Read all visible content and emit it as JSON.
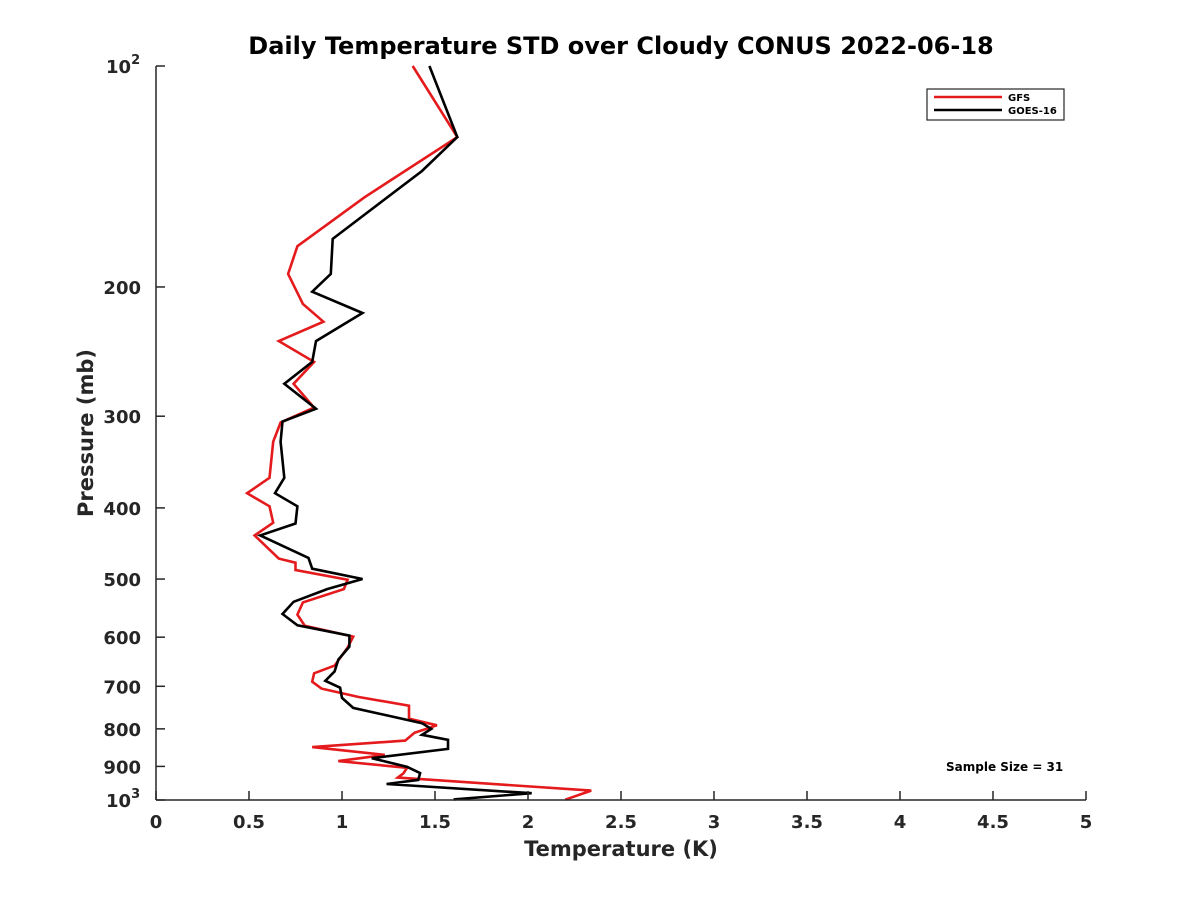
{
  "chart_data": {
    "type": "line",
    "title": "Daily Temperature STD over Cloudy CONUS 2022-06-18",
    "xlabel": "Temperature (K)",
    "ylabel": "Pressure (mb)",
    "xlim": [
      0,
      5
    ],
    "ylim": [
      1000,
      100
    ],
    "y_scale": "log",
    "y_reversed": true,
    "grid": false,
    "legend_position": "top-right",
    "x_ticks": [
      "0",
      "0.5",
      "1",
      "1.5",
      "2",
      "2.5",
      "3",
      "3.5",
      "4",
      "4.5",
      "5"
    ],
    "y_ticks": [
      {
        "value": 100,
        "label": "10",
        "sup": "2"
      },
      {
        "value": 200,
        "label": "200",
        "sup": ""
      },
      {
        "value": 300,
        "label": "300",
        "sup": ""
      },
      {
        "value": 400,
        "label": "400",
        "sup": ""
      },
      {
        "value": 500,
        "label": "500",
        "sup": ""
      },
      {
        "value": 600,
        "label": "600",
        "sup": ""
      },
      {
        "value": 700,
        "label": "700",
        "sup": ""
      },
      {
        "value": 800,
        "label": "800",
        "sup": ""
      },
      {
        "value": 900,
        "label": "900",
        "sup": ""
      },
      {
        "value": 1000,
        "label": "10",
        "sup": "3"
      }
    ],
    "series": [
      {
        "name": "GFS",
        "color": "#e41a1c",
        "points": [
          [
            1.38,
            100
          ],
          [
            1.62,
            125
          ],
          [
            1.12,
            151
          ],
          [
            0.76,
            176
          ],
          [
            0.71,
            192
          ],
          [
            0.79,
            211
          ],
          [
            0.9,
            223
          ],
          [
            0.66,
            237
          ],
          [
            0.85,
            253
          ],
          [
            0.74,
            271
          ],
          [
            0.85,
            292
          ],
          [
            0.67,
            306
          ],
          [
            0.63,
            325
          ],
          [
            0.61,
            364
          ],
          [
            0.49,
            382
          ],
          [
            0.61,
            398
          ],
          [
            0.63,
            419
          ],
          [
            0.53,
            436
          ],
          [
            0.66,
            469
          ],
          [
            0.75,
            475
          ],
          [
            0.75,
            486
          ],
          [
            1.03,
            501
          ],
          [
            1.01,
            516
          ],
          [
            0.79,
            538
          ],
          [
            0.76,
            559
          ],
          [
            0.8,
            579
          ],
          [
            1.06,
            599
          ],
          [
            1.03,
            620
          ],
          [
            0.96,
            656
          ],
          [
            0.85,
            672
          ],
          [
            0.84,
            690
          ],
          [
            0.89,
            705
          ],
          [
            1.09,
            724
          ],
          [
            1.36,
            744
          ],
          [
            1.36,
            775
          ],
          [
            1.51,
            791
          ],
          [
            1.39,
            810
          ],
          [
            1.34,
            830
          ],
          [
            0.84,
            847
          ],
          [
            1.23,
            868
          ],
          [
            0.98,
            885
          ],
          [
            1.35,
            904
          ],
          [
            1.33,
            920
          ],
          [
            1.3,
            932
          ],
          [
            2.34,
            971
          ],
          [
            2.2,
            999
          ]
        ]
      },
      {
        "name": "GOES-16",
        "color": "#000000",
        "points": [
          [
            1.47,
            100
          ],
          [
            1.62,
            125
          ],
          [
            1.43,
            139
          ],
          [
            0.95,
            172
          ],
          [
            0.94,
            192
          ],
          [
            0.84,
            203
          ],
          [
            1.11,
            217
          ],
          [
            0.86,
            237
          ],
          [
            0.84,
            253
          ],
          [
            0.69,
            271
          ],
          [
            0.86,
            293
          ],
          [
            0.68,
            305
          ],
          [
            0.67,
            325
          ],
          [
            0.69,
            364
          ],
          [
            0.64,
            382
          ],
          [
            0.76,
            398
          ],
          [
            0.75,
            420
          ],
          [
            0.56,
            436
          ],
          [
            0.82,
            468
          ],
          [
            0.84,
            484
          ],
          [
            1.11,
            500
          ],
          [
            0.92,
            516
          ],
          [
            0.74,
            537
          ],
          [
            0.68,
            558
          ],
          [
            0.76,
            578
          ],
          [
            1.04,
            597
          ],
          [
            1.04,
            618
          ],
          [
            0.98,
            644
          ],
          [
            0.96,
            668
          ],
          [
            0.91,
            688
          ],
          [
            0.99,
            703
          ],
          [
            1.0,
            726
          ],
          [
            1.06,
            749
          ],
          [
            1.43,
            786
          ],
          [
            1.48,
            800
          ],
          [
            1.43,
            815
          ],
          [
            1.57,
            828
          ],
          [
            1.57,
            852
          ],
          [
            1.16,
            877
          ],
          [
            1.35,
            901
          ],
          [
            1.42,
            919
          ],
          [
            1.41,
            939
          ],
          [
            1.24,
            951
          ],
          [
            2.02,
            979
          ],
          [
            1.6,
            998
          ]
        ]
      }
    ],
    "annotations": [
      {
        "text": "Sample Size = 31",
        "x": 4.25,
        "y": 900
      }
    ]
  }
}
